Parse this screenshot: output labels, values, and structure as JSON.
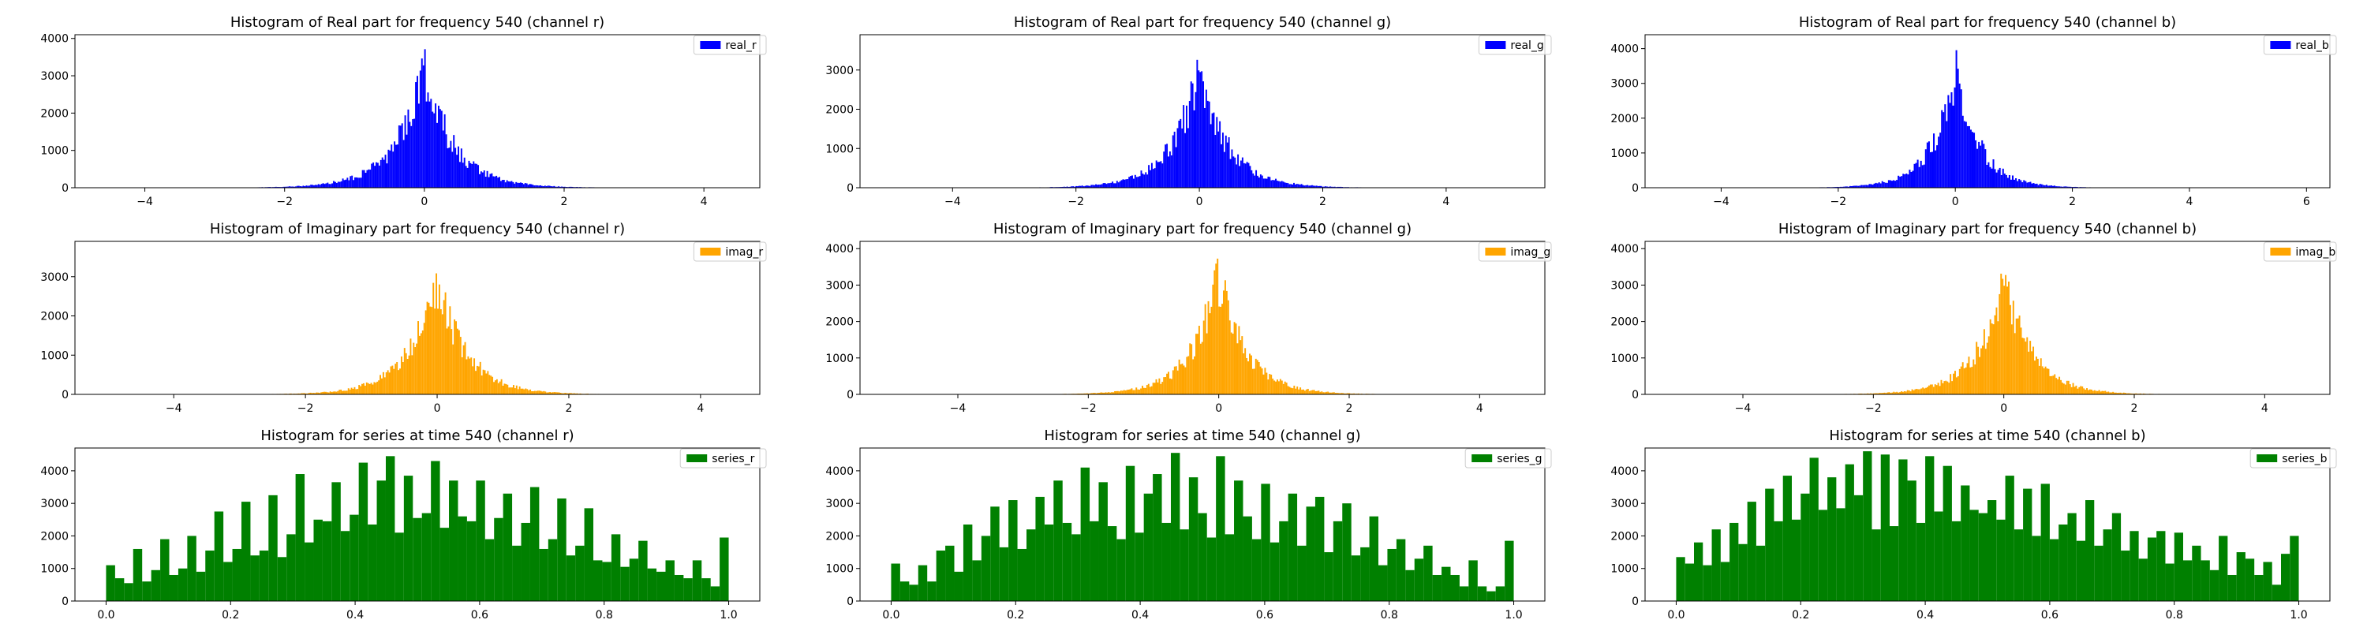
{
  "figure": {
    "background": "#ffffff",
    "rows": 3,
    "cols": 3
  },
  "chart_data": [
    {
      "type": "bar",
      "title": "Histogram of Real part for frequency 540 (channel r)",
      "legend": "real_r",
      "legend_loc": "top-right",
      "color": "#0000ff",
      "grid": false,
      "xlim": [
        -5.0,
        4.8
      ],
      "ylim": [
        0,
        4100
      ],
      "xticks": [
        -4,
        -2,
        0,
        2,
        4
      ],
      "yticks": [
        0,
        1000,
        2000,
        3000,
        4000
      ],
      "bin_range": [
        -4.2,
        4.5
      ],
      "bins": 400,
      "peak": 3950,
      "spread": 0.42,
      "jitter": 0.42,
      "seed": 11
    },
    {
      "type": "bar",
      "title": "Histogram of Real part for frequency 540 (channel g)",
      "legend": "real_g",
      "legend_loc": "top-right",
      "color": "#0000ff",
      "grid": false,
      "xlim": [
        -5.5,
        5.6
      ],
      "ylim": [
        0,
        3900
      ],
      "xticks": [
        -4,
        -2,
        0,
        2,
        4
      ],
      "yticks": [
        0,
        1000,
        2000,
        3000
      ],
      "bin_range": [
        -4.8,
        5.0
      ],
      "bins": 400,
      "peak": 3750,
      "spread": 0.45,
      "jitter": 0.42,
      "seed": 23
    },
    {
      "type": "bar",
      "title": "Histogram of Real part for frequency 540 (channel b)",
      "legend": "real_b",
      "legend_loc": "top-right",
      "color": "#0000ff",
      "grid": false,
      "xlim": [
        -5.3,
        6.4
      ],
      "ylim": [
        0,
        4400
      ],
      "xticks": [
        -4,
        -2,
        0,
        2,
        4,
        6
      ],
      "yticks": [
        0,
        1000,
        2000,
        3000,
        4000
      ],
      "bin_range": [
        -5.0,
        6.0
      ],
      "bins": 400,
      "peak": 4300,
      "spread": 0.4,
      "jitter": 0.42,
      "seed": 37
    },
    {
      "type": "bar",
      "title": "Histogram of Imaginary part for frequency 540 (channel r)",
      "legend": "imag_r",
      "legend_loc": "top-right",
      "color": "#ffa500",
      "grid": false,
      "xlim": [
        -5.5,
        4.9
      ],
      "ylim": [
        0,
        3900
      ],
      "xticks": [
        -4,
        -2,
        0,
        2,
        4
      ],
      "yticks": [
        0,
        1000,
        2000,
        3000
      ],
      "bin_range": [
        -4.6,
        4.6
      ],
      "bins": 400,
      "peak": 3800,
      "spread": 0.43,
      "jitter": 0.42,
      "seed": 41
    },
    {
      "type": "bar",
      "title": "Histogram of Imaginary part for frequency 540 (channel g)",
      "legend": "imag_g",
      "legend_loc": "top-right",
      "color": "#ffa500",
      "grid": false,
      "xlim": [
        -5.5,
        5.0
      ],
      "ylim": [
        0,
        4200
      ],
      "xticks": [
        -4,
        -2,
        0,
        2,
        4
      ],
      "yticks": [
        0,
        1000,
        2000,
        3000,
        4000
      ],
      "bin_range": [
        -4.8,
        4.6
      ],
      "bins": 400,
      "peak": 4050,
      "spread": 0.42,
      "jitter": 0.42,
      "seed": 53
    },
    {
      "type": "bar",
      "title": "Histogram of Imaginary part for frequency 540 (channel b)",
      "legend": "imag_b",
      "legend_loc": "top-right",
      "color": "#ffa500",
      "grid": false,
      "xlim": [
        -5.5,
        5.0
      ],
      "ylim": [
        0,
        4200
      ],
      "xticks": [
        -4,
        -2,
        0,
        2,
        4
      ],
      "yticks": [
        0,
        1000,
        2000,
        3000,
        4000
      ],
      "bin_range": [
        -4.8,
        4.6
      ],
      "bins": 400,
      "peak": 4000,
      "spread": 0.42,
      "jitter": 0.42,
      "seed": 67
    },
    {
      "type": "bar",
      "title": "Histogram for series at time 540 (channel r)",
      "legend": "series_r",
      "legend_loc": "top-right",
      "color": "#008000",
      "grid": false,
      "xlim": [
        -0.05,
        1.05
      ],
      "ylim": [
        0,
        4700
      ],
      "xticks": [
        0.0,
        0.2,
        0.4,
        0.6,
        0.8,
        1.0
      ],
      "yticks": [
        0,
        1000,
        2000,
        3000,
        4000
      ],
      "bin_range": [
        0.0,
        1.0
      ],
      "values": [
        1100,
        700,
        550,
        1600,
        600,
        950,
        1900,
        800,
        1000,
        2000,
        900,
        1550,
        2750,
        1200,
        1600,
        3050,
        1400,
        1550,
        3250,
        1350,
        2050,
        3900,
        1800,
        2500,
        2450,
        3650,
        2150,
        2650,
        4250,
        2350,
        3700,
        4450,
        2100,
        3850,
        2550,
        2700,
        4300,
        2250,
        3700,
        2600,
        2450,
        3700,
        1900,
        2550,
        3300,
        1700,
        2400,
        3500,
        1600,
        1900,
        3150,
        1400,
        1700,
        2850,
        1250,
        1200,
        2050,
        1050,
        1300,
        1850,
        1000,
        900,
        1250,
        800,
        700,
        1250,
        700,
        450,
        1950
      ]
    },
    {
      "type": "bar",
      "title": "Histogram for series at time 540 (channel g)",
      "legend": "series_g",
      "legend_loc": "top-right",
      "color": "#008000",
      "grid": false,
      "xlim": [
        -0.05,
        1.05
      ],
      "ylim": [
        0,
        4700
      ],
      "xticks": [
        0.0,
        0.2,
        0.4,
        0.6,
        0.8,
        1.0
      ],
      "yticks": [
        0,
        1000,
        2000,
        3000,
        4000
      ],
      "bin_range": [
        0.0,
        1.0
      ],
      "values": [
        1150,
        600,
        500,
        1100,
        600,
        1550,
        1700,
        900,
        2350,
        1250,
        2000,
        2900,
        1650,
        3100,
        1600,
        2200,
        3200,
        2350,
        3700,
        2400,
        2050,
        4100,
        2450,
        3650,
        2300,
        1900,
        4150,
        2100,
        3300,
        3900,
        2400,
        4550,
        2200,
        3800,
        2700,
        1950,
        4450,
        2050,
        3700,
        2600,
        1900,
        3600,
        1800,
        2450,
        3300,
        1700,
        2900,
        3200,
        1500,
        2450,
        3000,
        1400,
        1650,
        2600,
        1100,
        1600,
        1900,
        950,
        1300,
        1700,
        800,
        1050,
        800,
        450,
        1250,
        450,
        300,
        450,
        1850
      ]
    },
    {
      "type": "bar",
      "title": "Histogram for series at time 540 (channel b)",
      "legend": "series_b",
      "legend_loc": "top-right",
      "color": "#008000",
      "grid": false,
      "xlim": [
        -0.05,
        1.05
      ],
      "ylim": [
        0,
        4700
      ],
      "xticks": [
        0.0,
        0.2,
        0.4,
        0.6,
        0.8,
        1.0
      ],
      "yticks": [
        0,
        1000,
        2000,
        3000,
        4000
      ],
      "bin_range": [
        0.0,
        1.0
      ],
      "values": [
        1350,
        1150,
        1800,
        1100,
        2200,
        1200,
        2400,
        1750,
        3050,
        1700,
        3450,
        2450,
        3850,
        2500,
        3300,
        4400,
        2800,
        3800,
        2850,
        4200,
        3250,
        4600,
        2200,
        4500,
        2300,
        4350,
        3700,
        2400,
        4450,
        2750,
        4150,
        2450,
        3550,
        2800,
        2700,
        3100,
        2500,
        3850,
        2200,
        3450,
        2000,
        3600,
        1900,
        2350,
        2700,
        1850,
        3100,
        1700,
        2200,
        2700,
        1550,
        2150,
        1300,
        1950,
        2150,
        1150,
        2100,
        1250,
        1700,
        1250,
        950,
        2000,
        800,
        1500,
        1300,
        800,
        1200,
        500,
        1450,
        2000
      ]
    }
  ]
}
